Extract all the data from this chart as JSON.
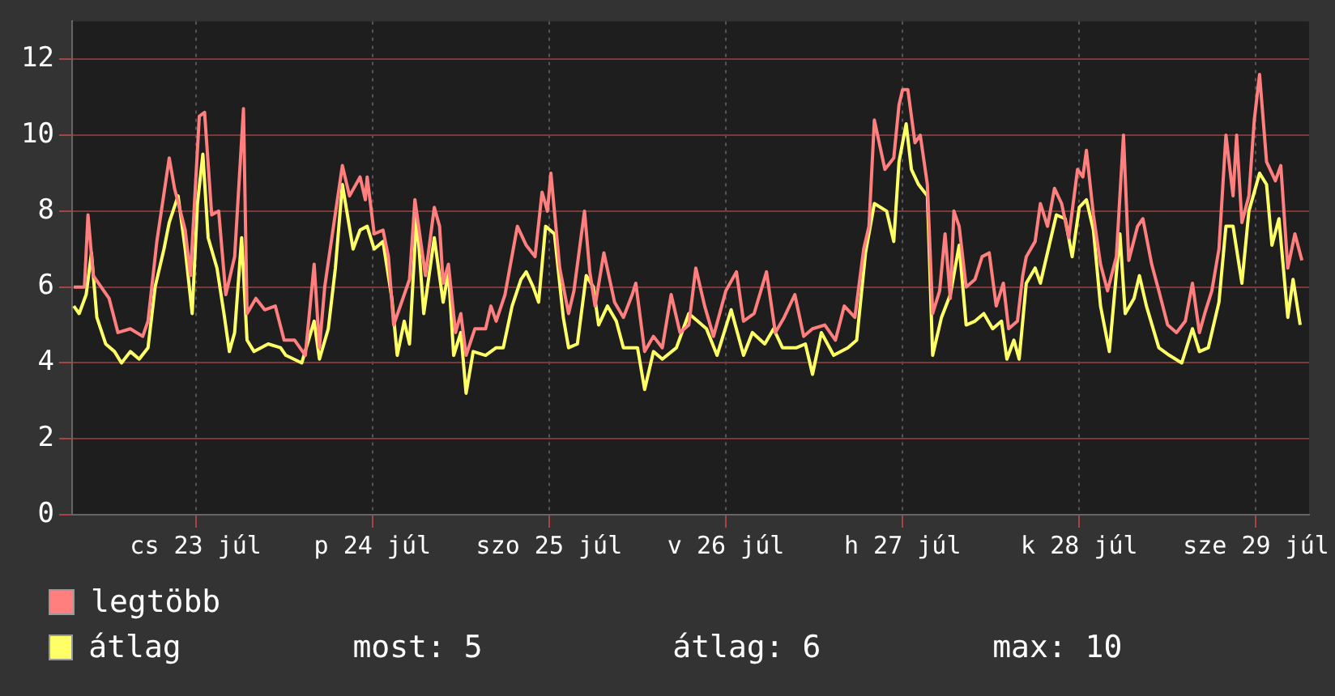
{
  "chart_data": {
    "type": "line",
    "xlim": [
      "--07-22T19:12",
      "--07-29T19:12"
    ],
    "xticks": [
      {
        "value": "--07-23T12:00",
        "label": "cs 23 júl"
      },
      {
        "value": "--07-24T12:00",
        "label": "p 24 júl"
      },
      {
        "value": "--07-25T12:00",
        "label": "szo 25 júl"
      },
      {
        "value": "--07-26T12:00",
        "label": "v 26 júl"
      },
      {
        "value": "--07-27T12:00",
        "label": "h 27 júl"
      },
      {
        "value": "--07-28T12:00",
        "label": "k 28 júl"
      },
      {
        "value": "--07-29T12:00",
        "label": "sze 29 júl"
      }
    ],
    "ylim": [
      0,
      13
    ],
    "yticks": [
      0,
      2,
      4,
      6,
      8,
      10,
      12
    ],
    "grid": true,
    "legend": "bottom left",
    "marker": "none",
    "line_style": "solid",
    "annotations": [
      "most: 5",
      "átlag: 6",
      "max: 10"
    ],
    "series": [
      {
        "name": "legtöbb",
        "color": "#ff7f7f",
        "x": [
          "--07-22T19:26",
          "--07-22T20:53",
          "--07-22T21:22",
          "--07-22T22:05",
          "--07-22T23:31",
          "--07-23T00:14",
          "--07-23T01:26",
          "--07-23T03:07",
          "--07-23T04:48",
          "--07-23T05:31",
          "--07-23T06:43",
          "--07-23T08:24",
          "--07-23T09:07",
          "--07-23T10:34",
          "--07-23T11:17",
          "--07-23T12:29",
          "--07-23T13:12",
          "--07-23T14:10",
          "--07-23T15:07",
          "--07-23T16:05",
          "--07-23T17:17",
          "--07-23T18:29",
          "--07-23T18:58",
          "--07-23T20:10",
          "--07-23T21:22",
          "--07-23T22:48",
          "--07-24T00:00",
          "--07-24T01:26",
          "--07-24T02:53",
          "--07-24T04:05",
          "--07-24T04:48",
          "--07-24T05:31",
          "--07-24T06:29",
          "--07-24T07:55",
          "--07-24T08:53",
          "--07-24T10:19",
          "--07-24T11:02",
          "--07-24T11:17",
          "--07-24T12:14",
          "--07-24T13:26",
          "--07-24T14:10",
          "--07-24T14:53",
          "--07-24T16:19",
          "--07-24T17:02",
          "--07-24T17:46",
          "--07-24T19:12",
          "--07-24T20:24",
          "--07-24T21:07",
          "--07-24T21:36",
          "--07-24T22:19",
          "--07-24T23:17",
          "--07-25T00:00",
          "--07-25T00:43",
          "--07-25T01:55",
          "--07-25T03:22",
          "--07-25T04:05",
          "--07-25T04:48",
          "--07-25T06:00",
          "--07-25T07:41",
          "--07-25T08:53",
          "--07-25T10:05",
          "--07-25T11:02",
          "--07-25T11:46",
          "--07-25T12:14",
          "--07-25T13:26",
          "--07-25T14:38",
          "--07-25T15:22",
          "--07-25T16:48",
          "--07-25T17:31",
          "--07-25T18:14",
          "--07-25T19:26",
          "--07-25T20:53",
          "--07-25T22:05",
          "--07-25T23:17",
          "--07-25T23:46",
          "--07-26T00:58",
          "--07-26T02:10",
          "--07-26T03:22",
          "--07-26T04:34",
          "--07-26T05:46",
          "--07-26T06:58",
          "--07-26T07:55",
          "--07-26T09:07",
          "--07-26T10:19",
          "--07-26T12:00",
          "--07-26T13:26",
          "--07-26T14:24",
          "--07-26T15:50",
          "--07-26T17:31",
          "--07-26T18:43",
          "--07-26T19:55",
          "--07-26T21:22",
          "--07-26T22:34",
          "--07-26T23:46",
          "--07-27T01:26",
          "--07-27T02:53",
          "--07-27T04:05",
          "--07-27T05:31",
          "--07-27T06:43",
          "--07-27T07:26",
          "--07-27T08:10",
          "--07-27T09:36",
          "--07-27T10:48",
          "--07-27T11:31",
          "--07-27T12:00",
          "--07-27T12:43",
          "--07-27T13:41",
          "--07-27T14:24",
          "--07-27T15:22",
          "--07-27T16:05",
          "--07-27T17:02",
          "--07-27T17:46",
          "--07-27T18:29",
          "--07-27T18:58",
          "--07-27T19:41",
          "--07-27T20:38",
          "--07-27T21:50",
          "--07-27T22:48",
          "--07-27T23:46",
          "--07-28T00:43",
          "--07-28T01:41",
          "--07-28T02:24",
          "--07-28T03:36",
          "--07-28T04:19",
          "--07-28T04:48",
          "--07-28T06:00",
          "--07-28T06:43",
          "--07-28T07:41",
          "--07-28T08:38",
          "--07-28T09:36",
          "--07-28T10:34",
          "--07-28T11:46",
          "--07-28T12:29",
          "--07-28T12:58",
          "--07-28T13:55",
          "--07-28T14:53",
          "--07-28T15:50",
          "--07-28T17:02",
          "--07-28T18:00",
          "--07-28T18:43",
          "--07-28T19:55",
          "--07-28T20:38",
          "--07-28T21:50",
          "--07-28T22:48",
          "--07-29T00:00",
          "--07-29T01:12",
          "--07-29T02:24",
          "--07-29T03:22",
          "--07-29T04:19",
          "--07-29T05:02",
          "--07-29T06:00",
          "--07-29T06:58",
          "--07-29T07:55",
          "--07-29T08:53",
          "--07-29T09:22",
          "--07-29T10:05",
          "--07-29T11:02",
          "--07-29T11:46",
          "--07-29T12:29",
          "--07-29T13:26",
          "--07-29T14:38",
          "--07-29T15:22",
          "--07-29T16:19",
          "--07-29T17:17",
          "--07-29T18:14"
        ],
        "values": [
          6.0,
          6.0,
          7.9,
          6.3,
          5.9,
          5.7,
          4.8,
          4.9,
          4.7,
          5.1,
          7.2,
          9.4,
          8.6,
          7.5,
          6.3,
          10.5,
          10.6,
          7.9,
          8.0,
          5.8,
          6.8,
          10.7,
          5.3,
          5.7,
          5.4,
          5.5,
          4.6,
          4.6,
          4.2,
          6.6,
          4.4,
          6.0,
          7.3,
          9.2,
          8.4,
          8.9,
          8.3,
          8.9,
          7.4,
          7.5,
          6.8,
          5.0,
          5.8,
          6.2,
          8.3,
          6.3,
          8.1,
          7.6,
          6.1,
          6.6,
          4.8,
          5.3,
          4.2,
          4.9,
          4.9,
          5.5,
          5.1,
          5.8,
          7.6,
          7.1,
          6.8,
          8.5,
          8.0,
          9.0,
          6.5,
          5.3,
          5.9,
          8.0,
          6.4,
          5.5,
          6.9,
          5.6,
          5.2,
          5.8,
          6.1,
          4.3,
          4.7,
          4.4,
          5.8,
          4.8,
          5.0,
          6.5,
          5.5,
          4.7,
          5.9,
          6.4,
          5.1,
          5.3,
          6.4,
          4.8,
          5.2,
          5.8,
          4.7,
          4.9,
          5.0,
          4.6,
          5.5,
          5.2,
          7.0,
          7.6,
          10.4,
          9.1,
          9.4,
          10.8,
          11.2,
          11.2,
          9.8,
          10.0,
          8.7,
          5.3,
          5.9,
          7.4,
          5.7,
          8.0,
          7.6,
          6.0,
          6.2,
          6.8,
          6.9,
          5.5,
          6.1,
          4.9,
          5.1,
          6.3,
          6.8,
          7.2,
          8.2,
          7.6,
          8.6,
          8.2,
          7.3,
          9.1,
          8.9,
          9.6,
          7.9,
          6.6,
          5.9,
          6.8,
          10.0,
          6.7,
          7.6,
          7.8,
          6.6,
          5.9,
          5.0,
          4.8,
          5.1,
          6.1,
          4.8,
          5.3,
          5.9,
          7.0,
          10.0,
          8.4,
          10.0,
          7.7,
          8.4,
          10.4,
          11.6,
          9.3,
          8.8,
          9.2,
          6.5,
          7.4,
          6.7
        ]
      },
      {
        "name": "átlag",
        "color": "#ffff66",
        "x": [
          "--07-22T19:26",
          "--07-22T20:10",
          "--07-22T21:07",
          "--07-22T21:50",
          "--07-22T22:34",
          "--07-22T23:46",
          "--07-23T00:58",
          "--07-23T01:55",
          "--07-23T03:07",
          "--07-23T04:19",
          "--07-23T05:31",
          "--07-23T06:29",
          "--07-23T07:41",
          "--07-23T08:24",
          "--07-23T09:36",
          "--07-23T10:34",
          "--07-23T11:31",
          "--07-23T12:14",
          "--07-23T12:58",
          "--07-23T13:41",
          "--07-23T14:53",
          "--07-23T15:50",
          "--07-23T16:34",
          "--07-23T17:17",
          "--07-23T18:14",
          "--07-23T18:58",
          "--07-23T19:55",
          "--07-23T21:50",
          "--07-23T23:31",
          "--07-24T00:14",
          "--07-24T02:24",
          "--07-24T04:05",
          "--07-24T04:48",
          "--07-24T06:00",
          "--07-24T06:58",
          "--07-24T07:55",
          "--07-24T09:22",
          "--07-24T10:19",
          "--07-24T11:17",
          "--07-24T12:14",
          "--07-24T13:26",
          "--07-24T14:38",
          "--07-24T15:22",
          "--07-24T16:19",
          "--07-24T17:02",
          "--07-24T18:00",
          "--07-24T18:58",
          "--07-24T20:24",
          "--07-24T21:36",
          "--07-24T22:19",
          "--07-24T23:02",
          "--07-25T00:00",
          "--07-25T00:43",
          "--07-25T01:41",
          "--07-25T03:22",
          "--07-25T04:48",
          "--07-25T05:46",
          "--07-25T06:58",
          "--07-25T08:10",
          "--07-25T08:53",
          "--07-25T09:50",
          "--07-25T10:34",
          "--07-25T11:31",
          "--07-25T12:43",
          "--07-25T13:55",
          "--07-25T14:38",
          "--07-25T15:50",
          "--07-25T17:02",
          "--07-25T18:00",
          "--07-25T18:43",
          "--07-25T19:55",
          "--07-25T21:07",
          "--07-25T22:05",
          "--07-26T00:00",
          "--07-26T00:58",
          "--07-26T02:10",
          "--07-26T03:22",
          "--07-26T05:17",
          "--07-26T06:58",
          "--07-26T08:10",
          "--07-26T09:22",
          "--07-26T10:48",
          "--07-26T12:43",
          "--07-26T14:24",
          "--07-26T15:36",
          "--07-26T17:17",
          "--07-26T18:29",
          "--07-26T19:41",
          "--07-26T21:36",
          "--07-26T22:48",
          "--07-26T23:46",
          "--07-27T00:58",
          "--07-27T02:38",
          "--07-27T04:34",
          "--07-27T05:46",
          "--07-27T06:58",
          "--07-27T08:10",
          "--07-27T09:50",
          "--07-27T10:48",
          "--07-27T11:31",
          "--07-27T12:29",
          "--07-27T13:12",
          "--07-27T14:10",
          "--07-27T15:22",
          "--07-27T16:05",
          "--07-27T17:17",
          "--07-27T18:29",
          "--07-27T19:41",
          "--07-27T20:38",
          "--07-27T21:50",
          "--07-27T23:02",
          "--07-28T00:14",
          "--07-28T01:26",
          "--07-28T02:10",
          "--07-28T03:07",
          "--07-28T03:50",
          "--07-28T04:48",
          "--07-28T06:00",
          "--07-28T06:43",
          "--07-28T07:55",
          "--07-28T08:53",
          "--07-28T10:05",
          "--07-28T11:02",
          "--07-28T12:00",
          "--07-28T12:58",
          "--07-28T13:55",
          "--07-28T14:53",
          "--07-28T16:05",
          "--07-28T17:31",
          "--07-28T18:14",
          "--07-28T19:26",
          "--07-28T20:10",
          "--07-28T21:07",
          "--07-28T22:48",
          "--07-29T00:14",
          "--07-29T01:55",
          "--07-29T03:22",
          "--07-29T04:19",
          "--07-29T05:31",
          "--07-29T06:58",
          "--07-29T07:55",
          "--07-29T08:53",
          "--07-29T10:05",
          "--07-29T11:02",
          "--07-29T11:46",
          "--07-29T12:29",
          "--07-29T13:26",
          "--07-29T14:10",
          "--07-29T15:07",
          "--07-29T16:19",
          "--07-29T17:02",
          "--07-29T18:00"
        ],
        "values": [
          5.5,
          5.3,
          5.8,
          6.9,
          5.2,
          4.5,
          4.3,
          4.0,
          4.3,
          4.1,
          4.4,
          6.0,
          7.0,
          7.7,
          8.4,
          7.0,
          5.3,
          8.2,
          9.5,
          7.3,
          6.5,
          5.3,
          4.3,
          4.8,
          7.3,
          4.6,
          4.3,
          4.5,
          4.4,
          4.2,
          4.0,
          5.1,
          4.1,
          4.9,
          6.5,
          8.7,
          7.0,
          7.5,
          7.6,
          7.0,
          7.2,
          5.7,
          4.2,
          5.1,
          4.5,
          7.9,
          5.3,
          7.3,
          5.6,
          6.4,
          4.2,
          4.8,
          3.2,
          4.3,
          4.2,
          4.4,
          4.4,
          5.5,
          6.2,
          6.4,
          6.0,
          5.6,
          7.6,
          7.4,
          5.2,
          4.4,
          4.5,
          6.3,
          6.0,
          5.0,
          5.5,
          5.1,
          4.4,
          4.4,
          3.3,
          4.3,
          4.1,
          4.4,
          5.3,
          5.1,
          4.9,
          4.2,
          5.4,
          4.2,
          4.8,
          4.5,
          4.9,
          4.4,
          4.4,
          4.5,
          3.7,
          4.8,
          4.2,
          4.4,
          4.6,
          6.9,
          8.2,
          8.0,
          7.2,
          9.3,
          10.3,
          9.1,
          8.7,
          8.4,
          4.2,
          5.2,
          5.8,
          7.1,
          5.0,
          5.1,
          5.3,
          4.9,
          5.1,
          4.1,
          4.6,
          4.1,
          6.1,
          6.5,
          6.1,
          7.1,
          7.9,
          7.8,
          6.8,
          8.1,
          8.3,
          7.5,
          5.5,
          4.3,
          7.4,
          5.3,
          5.7,
          6.3,
          5.5,
          4.4,
          4.2,
          4.0,
          4.9,
          4.3,
          4.4,
          5.6,
          7.6,
          7.6,
          6.1,
          8.0,
          8.5,
          9.0,
          8.7,
          7.1,
          7.8,
          5.2,
          6.2,
          5.0
        ]
      }
    ]
  }
}
